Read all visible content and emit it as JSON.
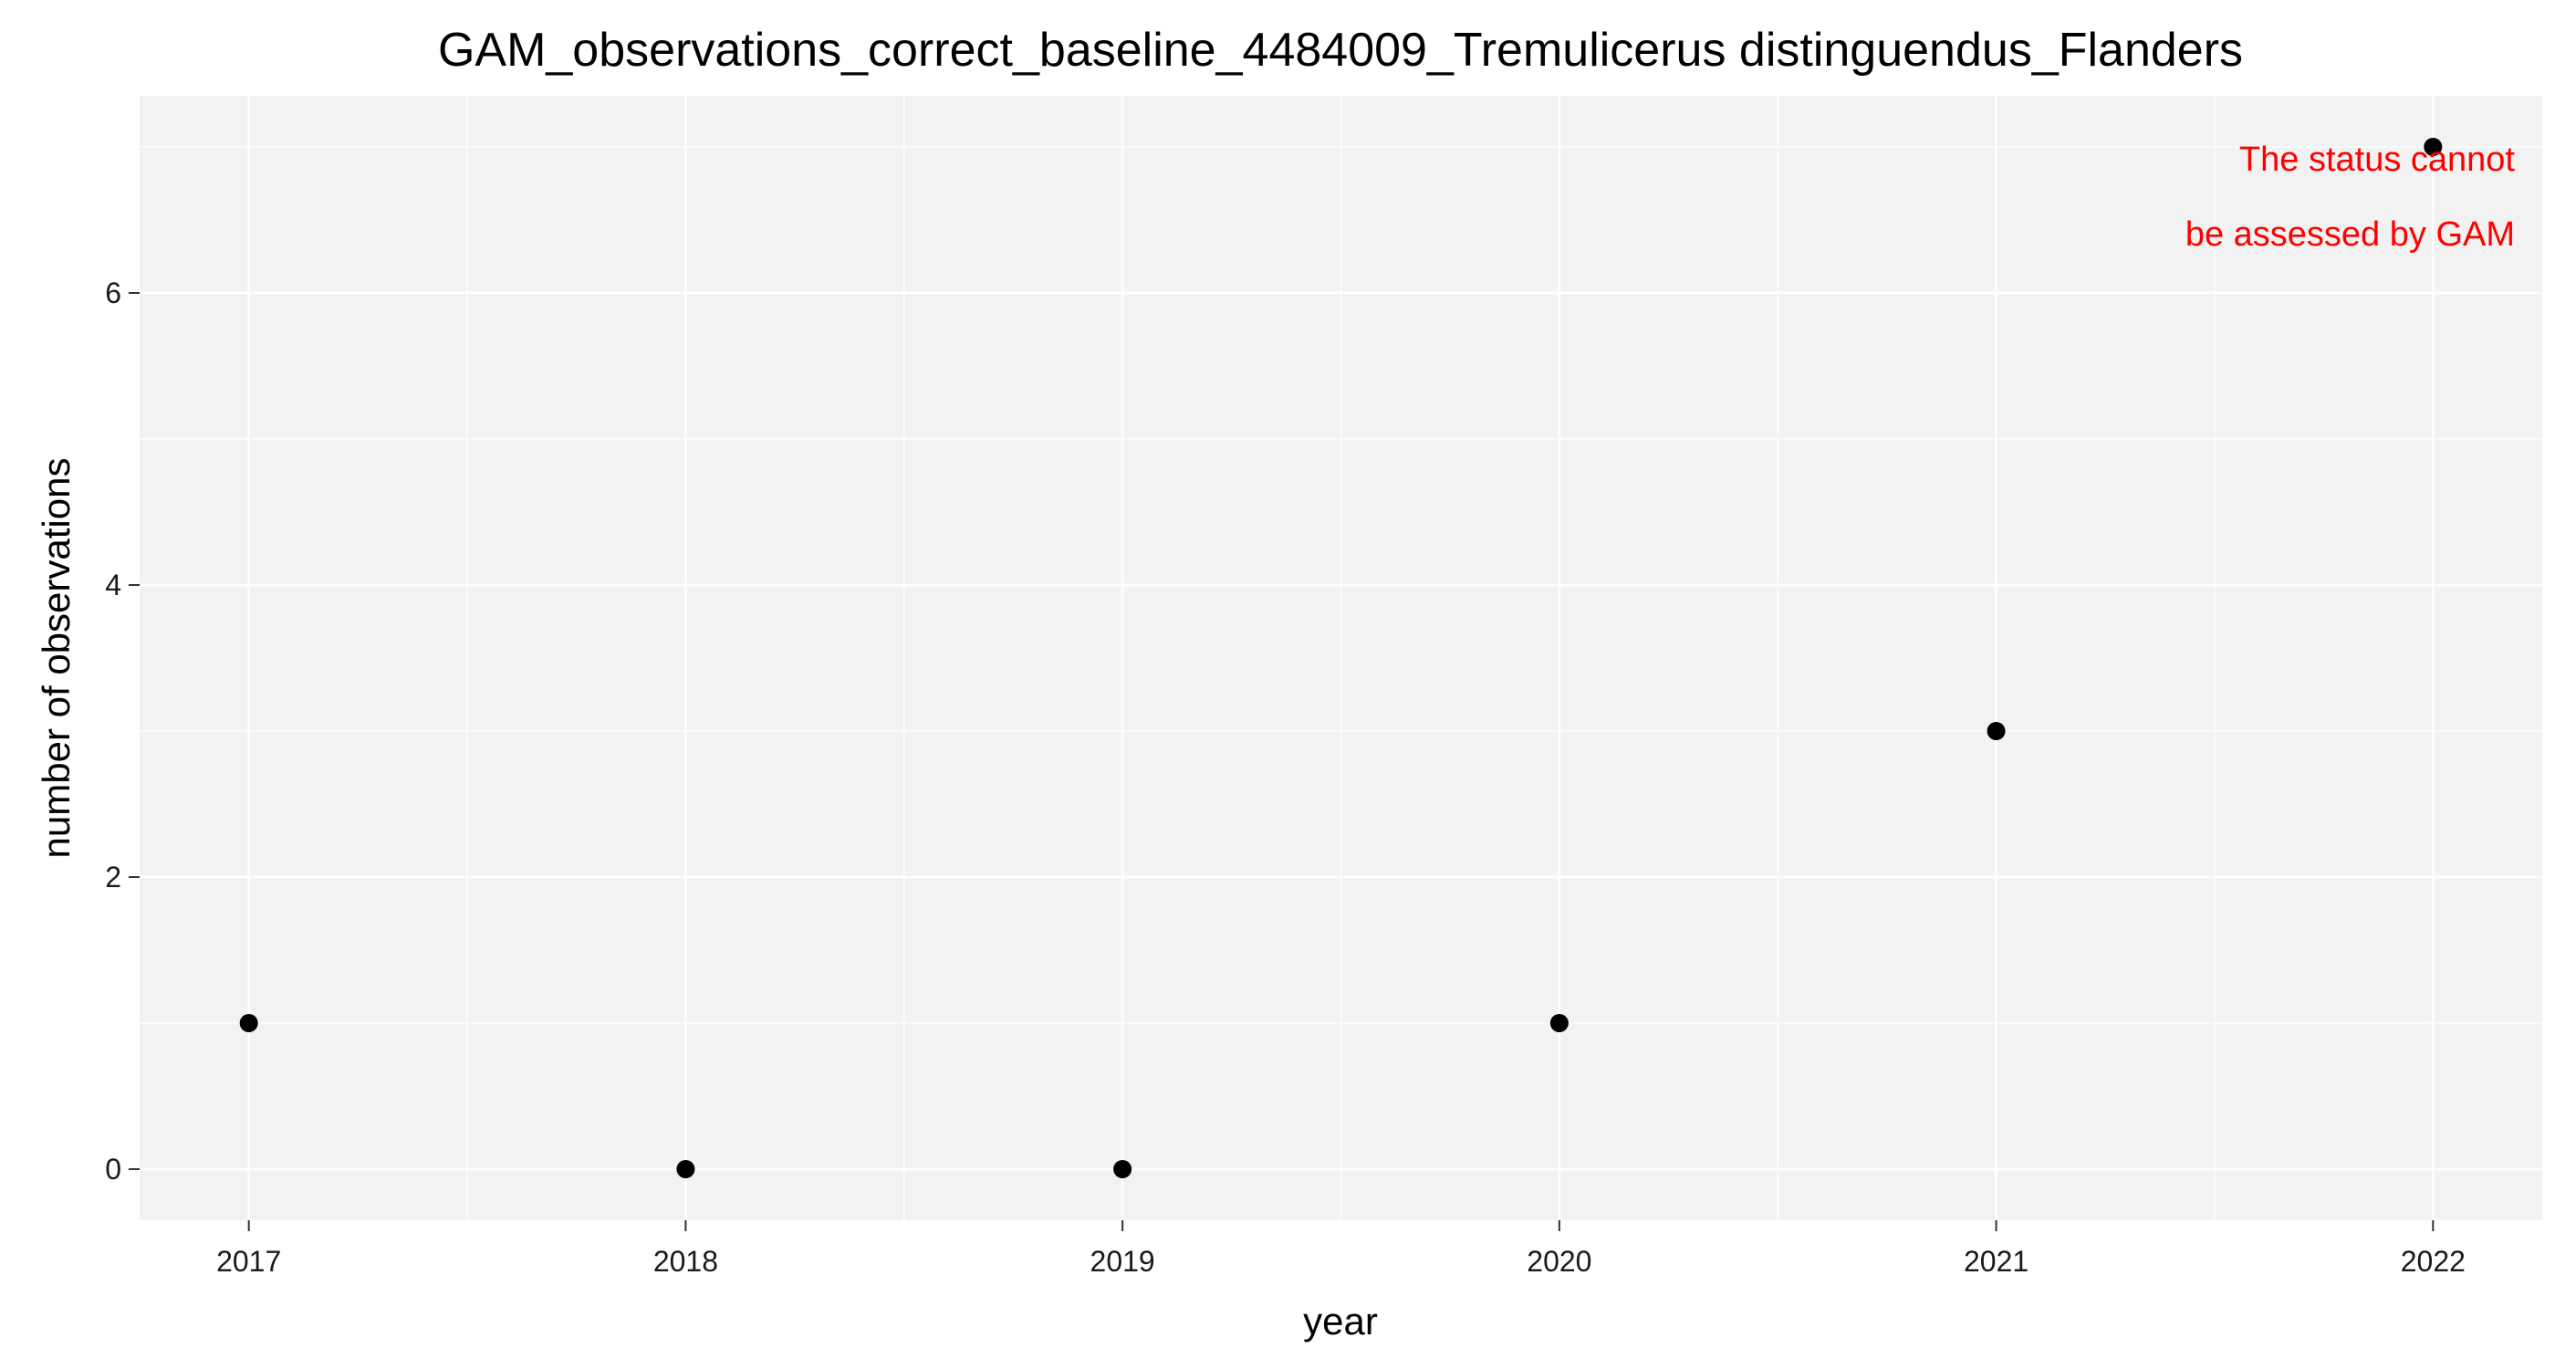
{
  "chart_data": {
    "type": "scatter",
    "title": "GAM_observations_correct_baseline_4484009_Tremulicerus distinguendus_Flanders",
    "xlabel": "year",
    "ylabel": "number of observations",
    "x": [
      2017,
      2018,
      2019,
      2020,
      2021,
      2022
    ],
    "y": [
      1,
      0,
      0,
      1,
      3,
      7
    ],
    "x_ticks": [
      "2017",
      "2018",
      "2019",
      "2020",
      "2021",
      "2022"
    ],
    "y_ticks": [
      "0",
      "2",
      "4",
      "6"
    ],
    "xlim": [
      2016.75,
      2022.25
    ],
    "ylim": [
      -0.35,
      7.35
    ],
    "grid": true,
    "legend": "none",
    "annotation": {
      "lines": [
        "The status cannot",
        "be assessed by GAM"
      ],
      "color": "#ff0000"
    },
    "colors": {
      "panel_background": "#f2f2f2",
      "grid": "#ffffff",
      "points": "#000000"
    }
  }
}
